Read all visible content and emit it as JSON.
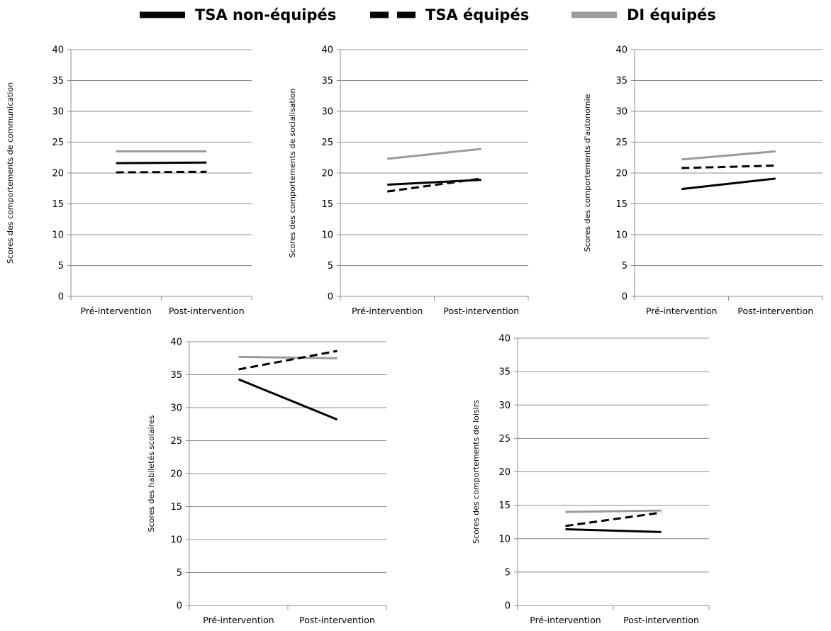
{
  "legend": [
    {
      "label": "TSA non-équipés",
      "color": "#000000",
      "dash": "solid"
    },
    {
      "label": "TSA équipés",
      "color": "#000000",
      "dash": "dashed"
    },
    {
      "label": "DI équipés",
      "color": "#9b9b9b",
      "dash": "solid"
    }
  ],
  "chart_data": [
    {
      "type": "line",
      "categories": [
        "Pré-intervention",
        "Post-intervention"
      ],
      "ylabel": "Scores des comportements de communication",
      "ylim": [
        0,
        40
      ],
      "yticks": [
        "0",
        "5",
        "10",
        "15",
        "20",
        "25",
        "30",
        "35",
        "40"
      ],
      "grid": true,
      "series": [
        {
          "name": "TSA non-équipés",
          "values": [
            21.6,
            21.7
          ]
        },
        {
          "name": "TSA équipés",
          "values": [
            20.1,
            20.2
          ]
        },
        {
          "name": "DI équipés",
          "values": [
            23.5,
            23.5
          ]
        }
      ]
    },
    {
      "type": "line",
      "categories": [
        "Pré-intervention",
        "Post-intervention"
      ],
      "ylabel": "Scores des comportements de socialisation",
      "ylim": [
        0,
        40
      ],
      "yticks": [
        "0",
        "5",
        "10",
        "15",
        "20",
        "25",
        "30",
        "35",
        "40"
      ],
      "grid": true,
      "series": [
        {
          "name": "TSA non-équipés",
          "values": [
            18.1,
            18.9
          ]
        },
        {
          "name": "TSA équipés",
          "values": [
            17.0,
            19.1
          ]
        },
        {
          "name": "DI équipés",
          "values": [
            22.3,
            23.9
          ]
        }
      ]
    },
    {
      "type": "line",
      "categories": [
        "Pré-intervention",
        "Post-intervention"
      ],
      "ylabel": "Scores des comportements d'autonomie",
      "ylim": [
        0,
        40
      ],
      "yticks": [
        "0",
        "5",
        "10",
        "15",
        "20",
        "25",
        "30",
        "35",
        "40"
      ],
      "grid": true,
      "series": [
        {
          "name": "TSA non-équipés",
          "values": [
            17.4,
            19.1
          ]
        },
        {
          "name": "TSA équipés",
          "values": [
            20.8,
            21.2
          ]
        },
        {
          "name": "DI équipés",
          "values": [
            22.2,
            23.5
          ]
        }
      ]
    },
    {
      "type": "line",
      "categories": [
        "Pré-intervention",
        "Post-intervention"
      ],
      "ylabel": "Scores des habiletés scolaires",
      "ylim": [
        0,
        40
      ],
      "yticks": [
        "0",
        "5",
        "10",
        "15",
        "20",
        "25",
        "30",
        "35",
        "40"
      ],
      "grid": true,
      "series": [
        {
          "name": "TSA non-équipés",
          "values": [
            34.3,
            28.2
          ]
        },
        {
          "name": "TSA équipés",
          "values": [
            35.8,
            38.6
          ]
        },
        {
          "name": "DI équipés",
          "values": [
            37.7,
            37.5
          ]
        }
      ]
    },
    {
      "type": "line",
      "categories": [
        "Pré-intervention",
        "Post-intervention"
      ],
      "ylabel": "Scores des comportements de loisirs",
      "ylim": [
        0,
        40
      ],
      "yticks": [
        "0",
        "5",
        "10",
        "15",
        "20",
        "25",
        "30",
        "35",
        "40"
      ],
      "grid": true,
      "series": [
        {
          "name": "TSA non-équipés",
          "values": [
            11.4,
            11.0
          ]
        },
        {
          "name": "TSA équipés",
          "values": [
            11.9,
            13.9
          ]
        },
        {
          "name": "DI équipés",
          "values": [
            14.0,
            14.2
          ]
        }
      ]
    }
  ]
}
